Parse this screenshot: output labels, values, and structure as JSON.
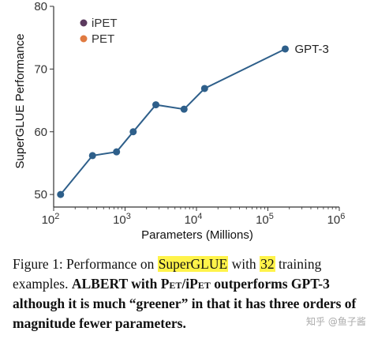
{
  "chart_data": {
    "type": "line",
    "ylabel": "SuperGLUE Performance",
    "xlabel": "Parameters (Millions)",
    "x_scale": "log",
    "xlim": [
      100,
      1000000
    ],
    "ylim": [
      48,
      80
    ],
    "y_ticks": [
      50,
      60,
      70,
      80
    ],
    "x_ticks": [
      {
        "value": 100,
        "base": "10",
        "exp": "2"
      },
      {
        "value": 1000,
        "base": "10",
        "exp": "3"
      },
      {
        "value": 10000,
        "base": "10",
        "exp": "4"
      },
      {
        "value": 100000,
        "base": "10",
        "exp": "5"
      },
      {
        "value": 1000000,
        "base": "10",
        "exp": "6"
      }
    ],
    "series": [
      {
        "name": "GPT-3",
        "color": "#2e5f8a",
        "x": [
          125,
          350,
          760,
          1300,
          2700,
          6700,
          13000,
          175000
        ],
        "y": [
          50.0,
          56.2,
          56.8,
          60.0,
          64.3,
          63.6,
          66.9,
          73.2
        ]
      }
    ],
    "legend": {
      "placement": "top-left",
      "entries": [
        {
          "label": "iPET",
          "color": "#5b3a5e"
        },
        {
          "label": "PET",
          "color": "#e07a40"
        }
      ]
    }
  },
  "caption": {
    "prefix": "Figure 1: Performance on ",
    "highlight1": "SuperGLUE",
    "mid": " with ",
    "highlight2": "32",
    "rest": " training examples. ",
    "bold1": "ALBERT with ",
    "pet": "Pet",
    "slash": "/i",
    "pet2": "Pet",
    "bold2": " outperforms GPT-3 although it is much “greener” in that it has three orders of magnitude fewer parameters."
  },
  "watermark": "知乎 @鱼子酱"
}
